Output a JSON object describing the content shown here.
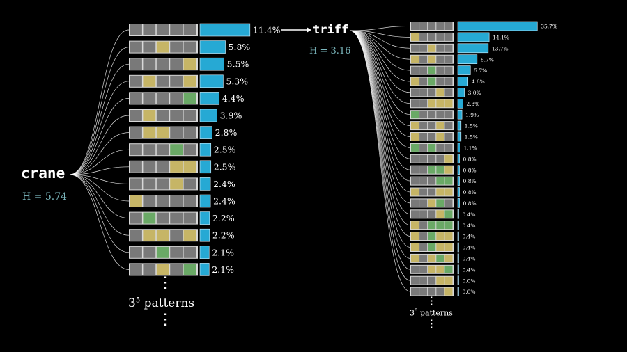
{
  "left": {
    "word": "crane",
    "entropy": "H = 5.74",
    "rows": [
      {
        "pattern": [
          "X",
          "X",
          "X",
          "X",
          "X"
        ],
        "pct": 11.4,
        "label": "11.4%"
      },
      {
        "pattern": [
          "X",
          "X",
          "Y",
          "X",
          "X"
        ],
        "pct": 5.8,
        "label": "5.8%"
      },
      {
        "pattern": [
          "X",
          "X",
          "X",
          "X",
          "Y"
        ],
        "pct": 5.5,
        "label": "5.5%"
      },
      {
        "pattern": [
          "X",
          "Y",
          "X",
          "X",
          "Y"
        ],
        "pct": 5.3,
        "label": "5.3%"
      },
      {
        "pattern": [
          "X",
          "X",
          "X",
          "X",
          "G"
        ],
        "pct": 4.4,
        "label": "4.4%"
      },
      {
        "pattern": [
          "X",
          "Y",
          "X",
          "X",
          "X"
        ],
        "pct": 3.9,
        "label": "3.9%"
      },
      {
        "pattern": [
          "X",
          "Y",
          "Y",
          "X",
          "X"
        ],
        "pct": 2.8,
        "label": "2.8%"
      },
      {
        "pattern": [
          "X",
          "X",
          "X",
          "G",
          "X"
        ],
        "pct": 2.5,
        "label": "2.5%"
      },
      {
        "pattern": [
          "X",
          "X",
          "X",
          "Y",
          "Y"
        ],
        "pct": 2.5,
        "label": "2.5%"
      },
      {
        "pattern": [
          "X",
          "X",
          "X",
          "Y",
          "X"
        ],
        "pct": 2.4,
        "label": "2.4%"
      },
      {
        "pattern": [
          "Y",
          "X",
          "X",
          "X",
          "X"
        ],
        "pct": 2.4,
        "label": "2.4%"
      },
      {
        "pattern": [
          "X",
          "G",
          "X",
          "X",
          "X"
        ],
        "pct": 2.2,
        "label": "2.2%"
      },
      {
        "pattern": [
          "X",
          "Y",
          "Y",
          "X",
          "Y"
        ],
        "pct": 2.2,
        "label": "2.2%"
      },
      {
        "pattern": [
          "X",
          "X",
          "G",
          "X",
          "X"
        ],
        "pct": 2.1,
        "label": "2.1%"
      },
      {
        "pattern": [
          "X",
          "X",
          "Y",
          "X",
          "G"
        ],
        "pct": 2.1,
        "label": "2.1%"
      }
    ],
    "dots": "⋮",
    "note_base": "3",
    "note_exp": "5",
    "note_text": "patterns"
  },
  "right": {
    "word": "triff",
    "entropy": "H = 3.16",
    "rows": [
      {
        "pattern": [
          "X",
          "X",
          "X",
          "X",
          "X"
        ],
        "pct": 35.7,
        "label": "35.7%"
      },
      {
        "pattern": [
          "Y",
          "X",
          "X",
          "X",
          "X"
        ],
        "pct": 14.1,
        "label": "14.1%"
      },
      {
        "pattern": [
          "X",
          "X",
          "Y",
          "X",
          "X"
        ],
        "pct": 13.7,
        "label": "13.7%"
      },
      {
        "pattern": [
          "Y",
          "X",
          "Y",
          "X",
          "X"
        ],
        "pct": 8.7,
        "label": "8.7%"
      },
      {
        "pattern": [
          "X",
          "X",
          "G",
          "X",
          "X"
        ],
        "pct": 5.7,
        "label": "5.7%"
      },
      {
        "pattern": [
          "Y",
          "X",
          "G",
          "X",
          "X"
        ],
        "pct": 4.6,
        "label": "4.6%"
      },
      {
        "pattern": [
          "X",
          "X",
          "X",
          "Y",
          "X"
        ],
        "pct": 3.0,
        "label": "3.0%"
      },
      {
        "pattern": [
          "X",
          "X",
          "Y",
          "Y",
          "Y"
        ],
        "pct": 2.3,
        "label": "2.3%"
      },
      {
        "pattern": [
          "G",
          "X",
          "X",
          "X",
          "X"
        ],
        "pct": 1.9,
        "label": "1.9%"
      },
      {
        "pattern": [
          "Y",
          "X",
          "X",
          "Y",
          "X"
        ],
        "pct": 1.5,
        "label": "1.5%"
      },
      {
        "pattern": [
          "Y",
          "X",
          "X",
          "Y",
          "X"
        ],
        "pct": 1.5,
        "label": "1.5%"
      },
      {
        "pattern": [
          "G",
          "X",
          "G",
          "X",
          "X"
        ],
        "pct": 1.1,
        "label": "1.1%"
      },
      {
        "pattern": [
          "X",
          "X",
          "X",
          "X",
          "Y"
        ],
        "pct": 0.8,
        "label": "0.8%"
      },
      {
        "pattern": [
          "X",
          "X",
          "G",
          "G",
          "Y"
        ],
        "pct": 0.8,
        "label": "0.8%"
      },
      {
        "pattern": [
          "X",
          "X",
          "X",
          "G",
          "G"
        ],
        "pct": 0.8,
        "label": "0.8%"
      },
      {
        "pattern": [
          "Y",
          "X",
          "X",
          "Y",
          "Y"
        ],
        "pct": 0.8,
        "label": "0.8%"
      },
      {
        "pattern": [
          "X",
          "X",
          "Y",
          "G",
          "X"
        ],
        "pct": 0.8,
        "label": "0.8%"
      },
      {
        "pattern": [
          "X",
          "X",
          "X",
          "Y",
          "G"
        ],
        "pct": 0.4,
        "label": "0.4%"
      },
      {
        "pattern": [
          "Y",
          "X",
          "G",
          "G",
          "G"
        ],
        "pct": 0.4,
        "label": "0.4%"
      },
      {
        "pattern": [
          "Y",
          "X",
          "G",
          "Y",
          "Y"
        ],
        "pct": 0.4,
        "label": "0.4%"
      },
      {
        "pattern": [
          "Y",
          "X",
          "G",
          "Y",
          "Y"
        ],
        "pct": 0.4,
        "label": "0.4%"
      },
      {
        "pattern": [
          "Y",
          "X",
          "Y",
          "G",
          "Y"
        ],
        "pct": 0.4,
        "label": "0.4%"
      },
      {
        "pattern": [
          "X",
          "X",
          "Y",
          "Y",
          "G"
        ],
        "pct": 0.4,
        "label": "0.4%"
      },
      {
        "pattern": [
          "X",
          "X",
          "X",
          "Y",
          "Y"
        ],
        "pct": 0.0,
        "label": "0.0%"
      },
      {
        "pattern": [
          "X",
          "X",
          "X",
          "X",
          "Y"
        ],
        "pct": 0.0,
        "label": "0.0%"
      }
    ],
    "dots": "⋮",
    "note_base": "3",
    "note_exp": "5",
    "note_text": "patterns"
  },
  "colors": {
    "gray": "#797979",
    "yellow": "#c6b566",
    "green": "#6aa966",
    "bar": "#26a9d4",
    "entropy": "#7bb7bd",
    "link": "#ffffff"
  }
}
